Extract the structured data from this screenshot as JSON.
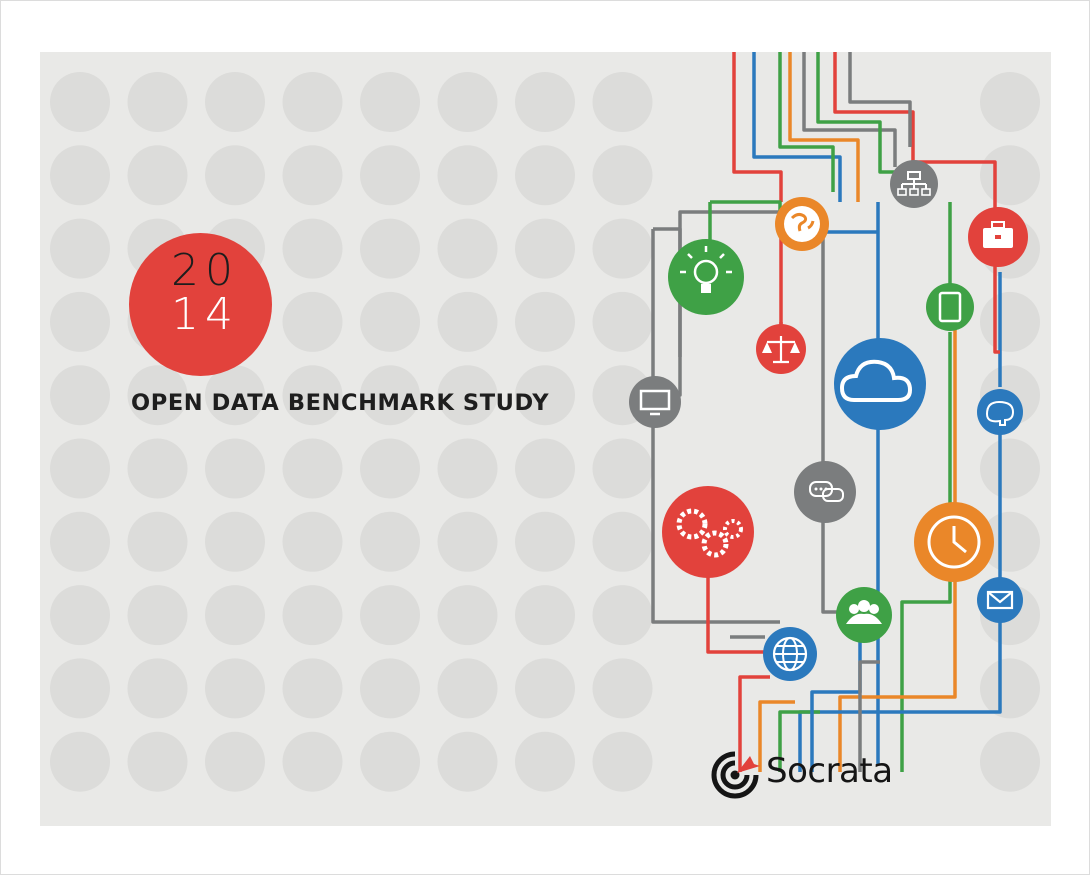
{
  "cover": {
    "year_top": "20",
    "year_bottom": "14",
    "title": "OPEN DATA BENCHMARK STUDY",
    "brand": "Socrata"
  },
  "colors": {
    "red": "#e2423c",
    "blue": "#2b79bd",
    "green": "#3fa146",
    "orange": "#ea8729",
    "gray": "#7b7d7e",
    "background": "#e9e9e7",
    "dot": "#dcdcda"
  },
  "icons": [
    {
      "name": "globe-world-icon",
      "color": "orange"
    },
    {
      "name": "org-chart-icon",
      "color": "gray"
    },
    {
      "name": "briefcase-icon",
      "color": "red"
    },
    {
      "name": "lightbulb-icon",
      "color": "green"
    },
    {
      "name": "tablet-icon",
      "color": "green"
    },
    {
      "name": "scales-icon",
      "color": "red"
    },
    {
      "name": "cloud-icon",
      "color": "blue"
    },
    {
      "name": "monitor-icon",
      "color": "gray"
    },
    {
      "name": "brain-icon",
      "color": "blue"
    },
    {
      "name": "chat-bubbles-icon",
      "color": "gray"
    },
    {
      "name": "gears-icon",
      "color": "red"
    },
    {
      "name": "clock-icon",
      "color": "orange"
    },
    {
      "name": "people-group-icon",
      "color": "green"
    },
    {
      "name": "envelope-icon",
      "color": "blue"
    },
    {
      "name": "globe-grid-icon",
      "color": "blue"
    }
  ]
}
